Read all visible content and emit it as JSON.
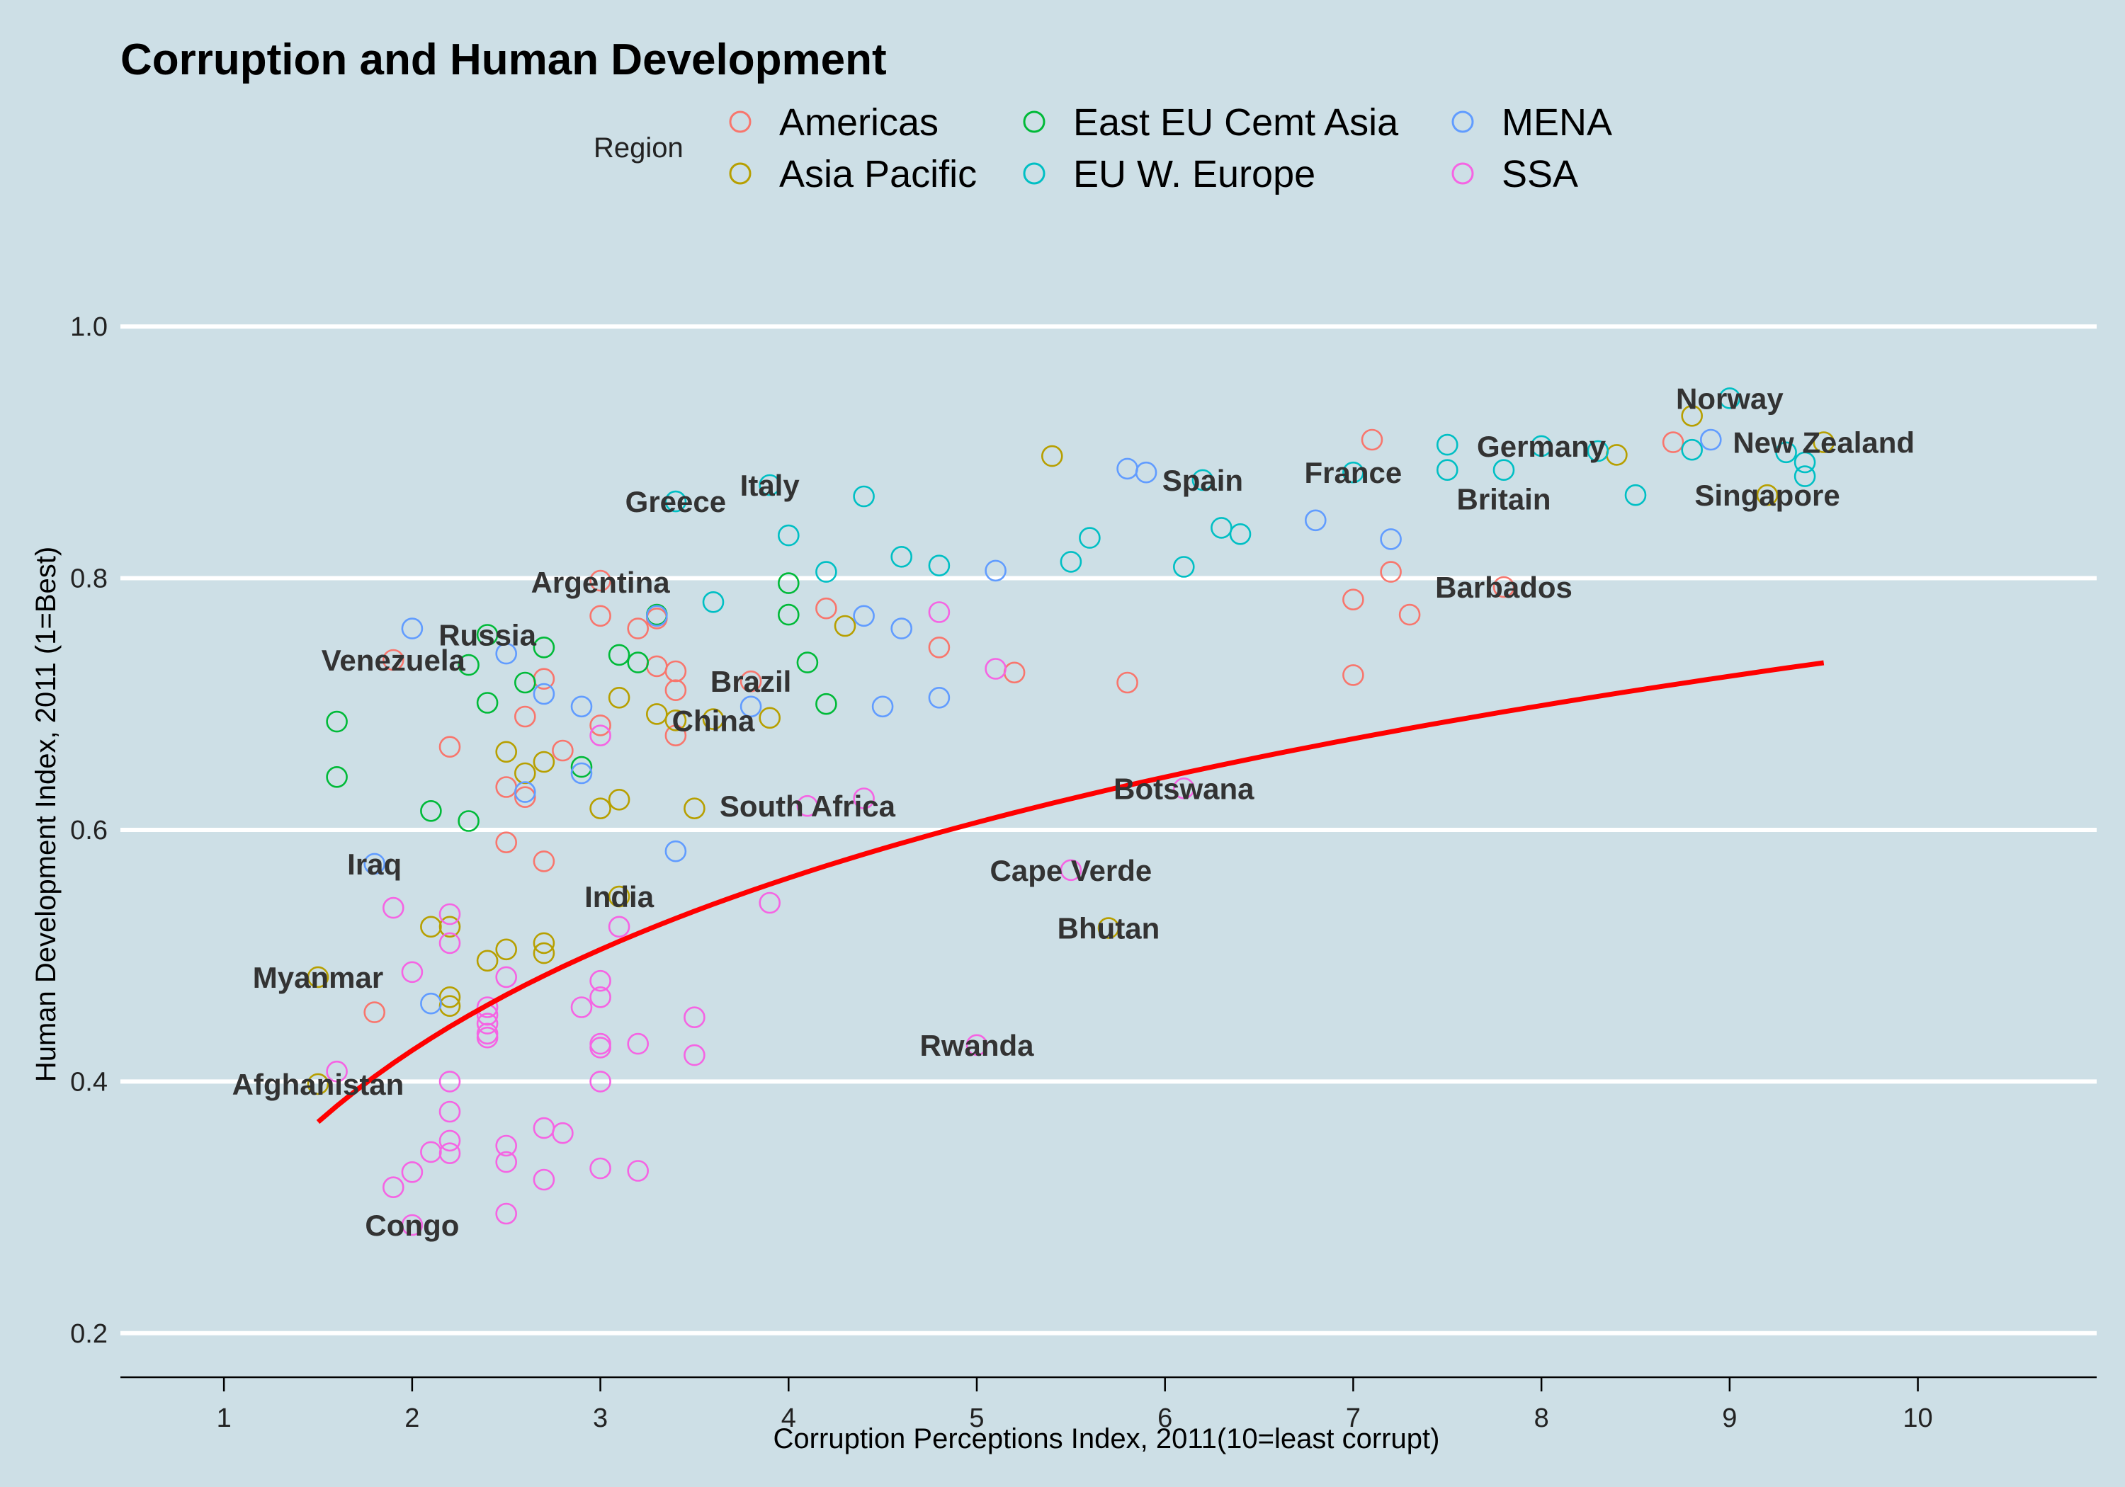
{
  "chart_data": {
    "type": "scatter",
    "title": "Corruption and Human Development",
    "xlabel": "Corruption Perceptions Index, 2011(10=least corrupt)",
    "ylabel": "Human Development Index, 2011 (1=Best)",
    "xlim": [
      0.45,
      10.95
    ],
    "ylim": [
      0.165,
      1.04
    ],
    "xticks": [
      1,
      2,
      3,
      4,
      5,
      6,
      7,
      8,
      9,
      10
    ],
    "yticks": [
      0.2,
      0.4,
      0.6,
      0.8,
      1.0
    ],
    "ytick_labels": [
      "0.2",
      "0.4",
      "0.6",
      "0.8",
      "1.0"
    ],
    "grid": "horizontal major lines (white)",
    "legend": {
      "title": "Region",
      "placement": "top",
      "entries": [
        {
          "label": "Americas",
          "color": "#F8766D"
        },
        {
          "label": "Asia Pacific",
          "color": "#B79F00"
        },
        {
          "label": "East EU Cemt Asia",
          "color": "#00BA38"
        },
        {
          "label": "EU W. Europe",
          "color": "#00BFC4"
        },
        {
          "label": "MENA",
          "color": "#619CFF"
        },
        {
          "label": "SSA",
          "color": "#F564E3"
        }
      ]
    },
    "trend_line": {
      "type": "log fit",
      "a": 0.2877,
      "b": 0.1977,
      "x_range": [
        1.5,
        9.5
      ],
      "color": "#ff0000"
    },
    "series": [
      {
        "name": "Americas",
        "color": "#F8766D",
        "points": [
          [
            1.8,
            0.455
          ],
          [
            1.9,
            0.735
          ],
          [
            2.2,
            0.666
          ],
          [
            2.5,
            0.634
          ],
          [
            2.5,
            0.59
          ],
          [
            2.6,
            0.626
          ],
          [
            2.6,
            0.69
          ],
          [
            2.7,
            0.72
          ],
          [
            2.7,
            0.575
          ],
          [
            2.8,
            0.663
          ],
          [
            3.0,
            0.798
          ],
          [
            3.0,
            0.77
          ],
          [
            3.0,
            0.683
          ],
          [
            3.2,
            0.76
          ],
          [
            3.3,
            0.73
          ],
          [
            3.3,
            0.768
          ],
          [
            3.4,
            0.726
          ],
          [
            3.4,
            0.711
          ],
          [
            3.4,
            0.675
          ],
          [
            3.8,
            0.718
          ],
          [
            4.2,
            0.776
          ],
          [
            4.8,
            0.745
          ],
          [
            5.2,
            0.725
          ],
          [
            5.8,
            0.717
          ],
          [
            7.0,
            0.783
          ],
          [
            7.0,
            0.723
          ],
          [
            7.1,
            0.91
          ],
          [
            7.2,
            0.805
          ],
          [
            7.3,
            0.771
          ],
          [
            7.8,
            0.793
          ],
          [
            8.7,
            0.908
          ]
        ]
      },
      {
        "name": "Asia Pacific",
        "color": "#B79F00",
        "points": [
          [
            1.5,
            0.483
          ],
          [
            1.5,
            0.398
          ],
          [
            2.1,
            0.523
          ],
          [
            2.2,
            0.523
          ],
          [
            2.2,
            0.467
          ],
          [
            2.2,
            0.46
          ],
          [
            2.4,
            0.496
          ],
          [
            2.5,
            0.505
          ],
          [
            2.5,
            0.662
          ],
          [
            2.6,
            0.645
          ],
          [
            2.7,
            0.654
          ],
          [
            2.7,
            0.51
          ],
          [
            2.7,
            0.502
          ],
          [
            3.0,
            0.617
          ],
          [
            3.1,
            0.705
          ],
          [
            3.1,
            0.624
          ],
          [
            3.1,
            0.547
          ],
          [
            3.3,
            0.692
          ],
          [
            3.4,
            0.687
          ],
          [
            3.5,
            0.617
          ],
          [
            3.6,
            0.688
          ],
          [
            3.9,
            0.689
          ],
          [
            4.3,
            0.762
          ],
          [
            5.4,
            0.897
          ],
          [
            5.7,
            0.522
          ],
          [
            8.4,
            0.898
          ],
          [
            8.8,
            0.929
          ],
          [
            9.2,
            0.866
          ],
          [
            9.5,
            0.908
          ]
        ]
      },
      {
        "name": "East EU Cemt Asia",
        "color": "#00BA38",
        "points": [
          [
            1.6,
            0.686
          ],
          [
            1.6,
            0.642
          ],
          [
            2.1,
            0.615
          ],
          [
            2.3,
            0.607
          ],
          [
            2.3,
            0.731
          ],
          [
            2.4,
            0.755
          ],
          [
            2.4,
            0.701
          ],
          [
            2.6,
            0.717
          ],
          [
            2.7,
            0.745
          ],
          [
            2.9,
            0.65
          ],
          [
            3.1,
            0.739
          ],
          [
            3.2,
            0.733
          ],
          [
            3.3,
            0.771
          ],
          [
            4.0,
            0.796
          ],
          [
            4.0,
            0.771
          ],
          [
            4.1,
            0.733
          ],
          [
            4.2,
            0.7
          ]
        ]
      },
      {
        "name": "EU W. Europe",
        "color": "#00BFC4",
        "points": [
          [
            3.4,
            0.861
          ],
          [
            3.6,
            0.781
          ],
          [
            3.9,
            0.874
          ],
          [
            4.0,
            0.834
          ],
          [
            4.2,
            0.805
          ],
          [
            4.4,
            0.865
          ],
          [
            4.6,
            0.817
          ],
          [
            4.8,
            0.81
          ],
          [
            5.5,
            0.813
          ],
          [
            5.6,
            0.832
          ],
          [
            6.1,
            0.809
          ],
          [
            6.2,
            0.878
          ],
          [
            6.3,
            0.84
          ],
          [
            6.4,
            0.835
          ],
          [
            7.0,
            0.884
          ],
          [
            7.5,
            0.906
          ],
          [
            7.5,
            0.886
          ],
          [
            7.8,
            0.886
          ],
          [
            8.0,
            0.905
          ],
          [
            8.3,
            0.901
          ],
          [
            8.5,
            0.866
          ],
          [
            8.8,
            0.902
          ],
          [
            9.0,
            0.943
          ],
          [
            9.3,
            0.9
          ],
          [
            9.4,
            0.892
          ],
          [
            9.4,
            0.881
          ]
        ]
      },
      {
        "name": "MENA",
        "color": "#619CFF",
        "points": [
          [
            1.8,
            0.573
          ],
          [
            2.0,
            0.76
          ],
          [
            2.1,
            0.462
          ],
          [
            2.5,
            0.74
          ],
          [
            2.6,
            0.63
          ],
          [
            2.7,
            0.708
          ],
          [
            2.9,
            0.698
          ],
          [
            2.9,
            0.645
          ],
          [
            3.3,
            0.77
          ],
          [
            3.4,
            0.583
          ],
          [
            3.8,
            0.698
          ],
          [
            4.4,
            0.77
          ],
          [
            4.5,
            0.698
          ],
          [
            4.6,
            0.76
          ],
          [
            4.8,
            0.705
          ],
          [
            5.1,
            0.806
          ],
          [
            5.8,
            0.887
          ],
          [
            5.9,
            0.884
          ],
          [
            6.8,
            0.846
          ],
          [
            7.2,
            0.831
          ],
          [
            8.9,
            0.91
          ]
        ]
      },
      {
        "name": "SSA",
        "color": "#F564E3",
        "points": [
          [
            1.6,
            0.408
          ],
          [
            1.9,
            0.538
          ],
          [
            1.9,
            0.316
          ],
          [
            2.0,
            0.328
          ],
          [
            2.0,
            0.286
          ],
          [
            2.0,
            0.487
          ],
          [
            2.1,
            0.344
          ],
          [
            2.2,
            0.533
          ],
          [
            2.2,
            0.51
          ],
          [
            2.2,
            0.4
          ],
          [
            2.2,
            0.376
          ],
          [
            2.2,
            0.353
          ],
          [
            2.2,
            0.343
          ],
          [
            2.4,
            0.459
          ],
          [
            2.4,
            0.453
          ],
          [
            2.4,
            0.446
          ],
          [
            2.4,
            0.438
          ],
          [
            2.4,
            0.435
          ],
          [
            2.5,
            0.483
          ],
          [
            2.5,
            0.349
          ],
          [
            2.5,
            0.336
          ],
          [
            2.5,
            0.295
          ],
          [
            2.7,
            0.363
          ],
          [
            2.7,
            0.322
          ],
          [
            2.8,
            0.359
          ],
          [
            2.9,
            0.459
          ],
          [
            3.0,
            0.675
          ],
          [
            3.0,
            0.48
          ],
          [
            3.0,
            0.467
          ],
          [
            3.0,
            0.43
          ],
          [
            3.0,
            0.427
          ],
          [
            3.0,
            0.4
          ],
          [
            3.0,
            0.331
          ],
          [
            3.1,
            0.523
          ],
          [
            3.2,
            0.43
          ],
          [
            3.2,
            0.329
          ],
          [
            3.5,
            0.451
          ],
          [
            3.5,
            0.421
          ],
          [
            3.9,
            0.542
          ],
          [
            4.1,
            0.619
          ],
          [
            4.4,
            0.625
          ],
          [
            4.8,
            0.773
          ],
          [
            5.0,
            0.429
          ],
          [
            5.1,
            0.728
          ],
          [
            5.5,
            0.568
          ],
          [
            6.1,
            0.633
          ]
        ]
      }
    ],
    "annotations": [
      {
        "text": "Norway",
        "x": 9.0,
        "y": 0.943
      },
      {
        "text": "New Zealand",
        "x": 9.5,
        "y": 0.908
      },
      {
        "text": "Singapore",
        "x": 9.2,
        "y": 0.866
      },
      {
        "text": "Germany",
        "x": 8.0,
        "y": 0.905
      },
      {
        "text": "Britain",
        "x": 7.8,
        "y": 0.863
      },
      {
        "text": "Barbados",
        "x": 7.8,
        "y": 0.793
      },
      {
        "text": "France",
        "x": 7.0,
        "y": 0.884
      },
      {
        "text": "Spain",
        "x": 6.2,
        "y": 0.878
      },
      {
        "text": "Italy",
        "x": 3.9,
        "y": 0.874
      },
      {
        "text": "Greece",
        "x": 3.4,
        "y": 0.861
      },
      {
        "text": "Argentina",
        "x": 3.0,
        "y": 0.797
      },
      {
        "text": "Russia",
        "x": 2.4,
        "y": 0.755
      },
      {
        "text": "Venezuela",
        "x": 1.9,
        "y": 0.735
      },
      {
        "text": "Brazil",
        "x": 3.8,
        "y": 0.718
      },
      {
        "text": "China",
        "x": 3.6,
        "y": 0.687
      },
      {
        "text": "South Africa",
        "x": 4.1,
        "y": 0.619
      },
      {
        "text": "Botswana",
        "x": 6.1,
        "y": 0.633
      },
      {
        "text": "Cape Verde",
        "x": 5.5,
        "y": 0.568
      },
      {
        "text": "Bhutan",
        "x": 5.7,
        "y": 0.522
      },
      {
        "text": "Iraq",
        "x": 1.8,
        "y": 0.573
      },
      {
        "text": "India",
        "x": 3.1,
        "y": 0.547
      },
      {
        "text": "Myanmar",
        "x": 1.5,
        "y": 0.483
      },
      {
        "text": "Afghanistan",
        "x": 1.5,
        "y": 0.398
      },
      {
        "text": "Rwanda",
        "x": 5.0,
        "y": 0.429
      },
      {
        "text": "Congo",
        "x": 2.0,
        "y": 0.286
      }
    ]
  }
}
